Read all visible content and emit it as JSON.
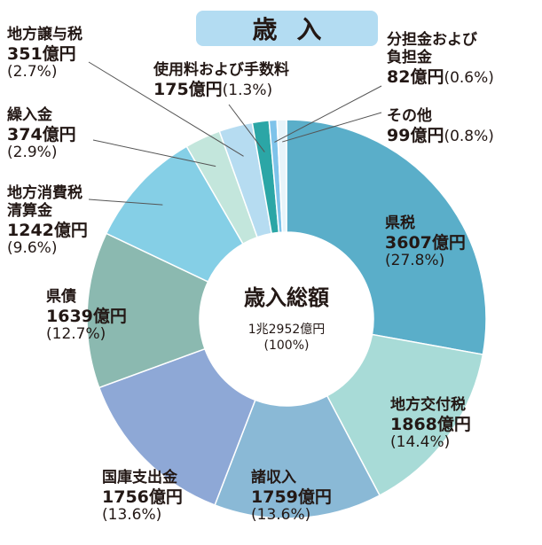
{
  "chart_data": {
    "type": "pie",
    "title": "歳入",
    "center_title": "歳入総額",
    "center_total": "1兆2952億円",
    "center_percent": "(100%)",
    "slices": [
      {
        "name": "県税",
        "value": 3607,
        "amount": "3607億円",
        "percent": "(27.8%)",
        "color": "#5aaec9"
      },
      {
        "name": "地方交付税",
        "value": 1868,
        "amount": "1868億円",
        "percent": "(14.4%)",
        "color": "#a8dbd7"
      },
      {
        "name": "諸収入",
        "value": 1759,
        "amount": "1759億円",
        "percent": "(13.6%)",
        "color": "#8ab9d6"
      },
      {
        "name": "国庫支出金",
        "value": 1756,
        "amount": "1756億円",
        "percent": "(13.6%)",
        "color": "#8ea8d6"
      },
      {
        "name": "県債",
        "value": 1639,
        "amount": "1639億円",
        "percent": "(12.7%)",
        "color": "#8bb9b0"
      },
      {
        "name": "地方消費税清算金",
        "value": 1242,
        "amount": "1242億円",
        "percent": "(9.6%)",
        "color": "#85cfe6"
      },
      {
        "name": "繰入金",
        "value": 374,
        "amount": "374億円",
        "percent": "(2.9%)",
        "color": "#c3e6dc"
      },
      {
        "name": "地方譲与税",
        "value": 351,
        "amount": "351億円",
        "percent": "(2.7%)",
        "color": "#b6dcf1"
      },
      {
        "name": "使用料および手数料",
        "value": 175,
        "amount": "175億円",
        "percent": "(1.3%)",
        "color": "#2ba6a6"
      },
      {
        "name": "分担金および負担金",
        "value": 82,
        "amount": "82億円",
        "percent": "(0.6%)",
        "color": "#7ec3ea"
      },
      {
        "name": "その他",
        "value": 99,
        "amount": "99億円",
        "percent": "(0.8%)",
        "color": "#e7f4fa"
      }
    ]
  },
  "labels": {
    "kenzei": {
      "name": "県税",
      "amount": "3607億円",
      "percent": "(27.8%)"
    },
    "kofuzei": {
      "name": "地方交付税",
      "amount": "1868億円",
      "percent": "(14.4%)"
    },
    "shoshunyu": {
      "name": "諸収入",
      "amount": "1759億円",
      "percent": "(13.6%)"
    },
    "kokko": {
      "name": "国庫支出金",
      "amount": "1756億円",
      "percent": "(13.6%)"
    },
    "kensai": {
      "name": "県債",
      "amount": "1639億円",
      "percent": "(12.7%)"
    },
    "shohizei": {
      "name_line1": "地方消費税",
      "name_line2": "清算金",
      "amount": "1242億円",
      "percent": "(9.6%)"
    },
    "kurinyu": {
      "name": "繰入金",
      "amount": "374億円",
      "percent": "(2.9%)"
    },
    "joyozei": {
      "name": "地方譲与税",
      "amount": "351億円",
      "percent": "(2.7%)"
    },
    "shiyoryo": {
      "name": "使用料および手数料",
      "amount": "175億円",
      "percent": "(1.3%)"
    },
    "buntankin": {
      "name_line1": "分担金および",
      "name_line2": "負担金",
      "amount": "82億円",
      "percent": "(0.6%)"
    },
    "sonota": {
      "name": "その他",
      "amount": "99億円",
      "percent": "(0.8%)"
    }
  }
}
